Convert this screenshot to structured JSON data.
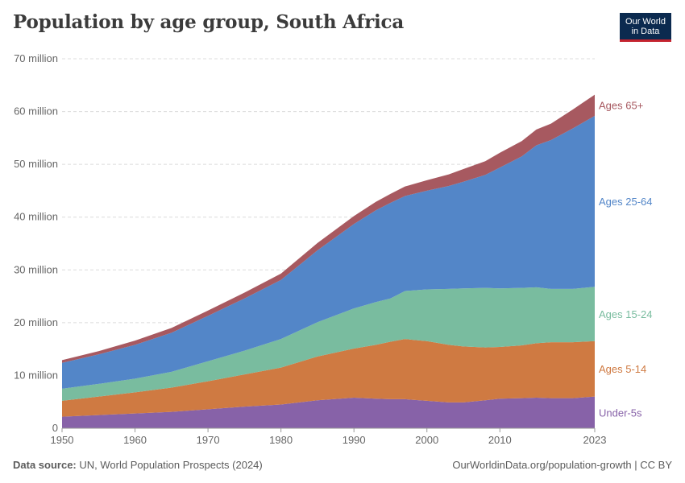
{
  "header": {
    "title": "Population by age group, South Africa",
    "logo_line1": "Our World",
    "logo_line2": "in Data"
  },
  "footer": {
    "source_label": "Data source:",
    "source_text": "UN, World Population Prospects (2024)",
    "url_text": "OurWorldinData.org/population-growth | CC BY"
  },
  "chart_data": {
    "type": "area",
    "stacked": true,
    "title": "Population by age group, South Africa",
    "xlabel": "",
    "ylabel": "",
    "x": [
      1950,
      1955,
      1960,
      1965,
      1970,
      1975,
      1980,
      1985,
      1990,
      1993,
      1995,
      1997,
      2000,
      2003,
      2005,
      2008,
      2010,
      2013,
      2015,
      2017,
      2020,
      2023
    ],
    "xlim": [
      1950,
      2023
    ],
    "ylim": [
      0,
      70
    ],
    "y_unit": "million",
    "x_ticks": [
      "1950",
      "1960",
      "1970",
      "1980",
      "1990",
      "2000",
      "2010",
      "2023"
    ],
    "y_ticks": [
      "0",
      "10 million",
      "20 million",
      "30 million",
      "40 million",
      "50 million",
      "60 million",
      "70 million"
    ],
    "grid": "horizontal dashed",
    "legend": "inline labels at right",
    "series": [
      {
        "name": "Under-5s",
        "color": "#8762a8",
        "values": [
          2.2,
          2.5,
          2.8,
          3.1,
          3.6,
          4.1,
          4.5,
          5.3,
          5.8,
          5.6,
          5.5,
          5.5,
          5.2,
          4.9,
          4.9,
          5.3,
          5.6,
          5.7,
          5.8,
          5.7,
          5.7,
          6.0
        ]
      },
      {
        "name": "Ages 5-14",
        "color": "#cf7a42",
        "values": [
          3.0,
          3.5,
          4.0,
          4.6,
          5.3,
          6.1,
          7.0,
          8.3,
          9.3,
          10.2,
          10.9,
          11.4,
          11.3,
          10.9,
          10.6,
          10.0,
          9.8,
          10.0,
          10.3,
          10.6,
          10.6,
          10.5
        ]
      },
      {
        "name": "Ages 15-24",
        "color": "#79bc9f",
        "values": [
          2.3,
          2.4,
          2.6,
          3.0,
          3.8,
          4.5,
          5.4,
          6.5,
          7.6,
          8.1,
          8.2,
          9.1,
          9.8,
          10.6,
          11.0,
          11.3,
          11.1,
          10.9,
          10.6,
          10.1,
          10.1,
          10.3
        ]
      },
      {
        "name": "Ages 25-64",
        "color": "#5386c8",
        "values": [
          4.9,
          5.6,
          6.4,
          7.4,
          8.6,
          9.9,
          11.2,
          13.6,
          16.0,
          17.4,
          18.1,
          18.0,
          18.7,
          19.5,
          20.2,
          21.4,
          22.9,
          24.9,
          26.9,
          28.2,
          30.4,
          32.4
        ]
      },
      {
        "name": "Ages 65+",
        "color": "#a75960",
        "values": [
          0.5,
          0.6,
          0.8,
          0.9,
          1.0,
          1.1,
          1.2,
          1.4,
          1.5,
          1.6,
          1.7,
          1.8,
          2.0,
          2.2,
          2.4,
          2.6,
          2.8,
          2.9,
          3.0,
          3.1,
          3.6,
          4.0
        ]
      }
    ]
  }
}
